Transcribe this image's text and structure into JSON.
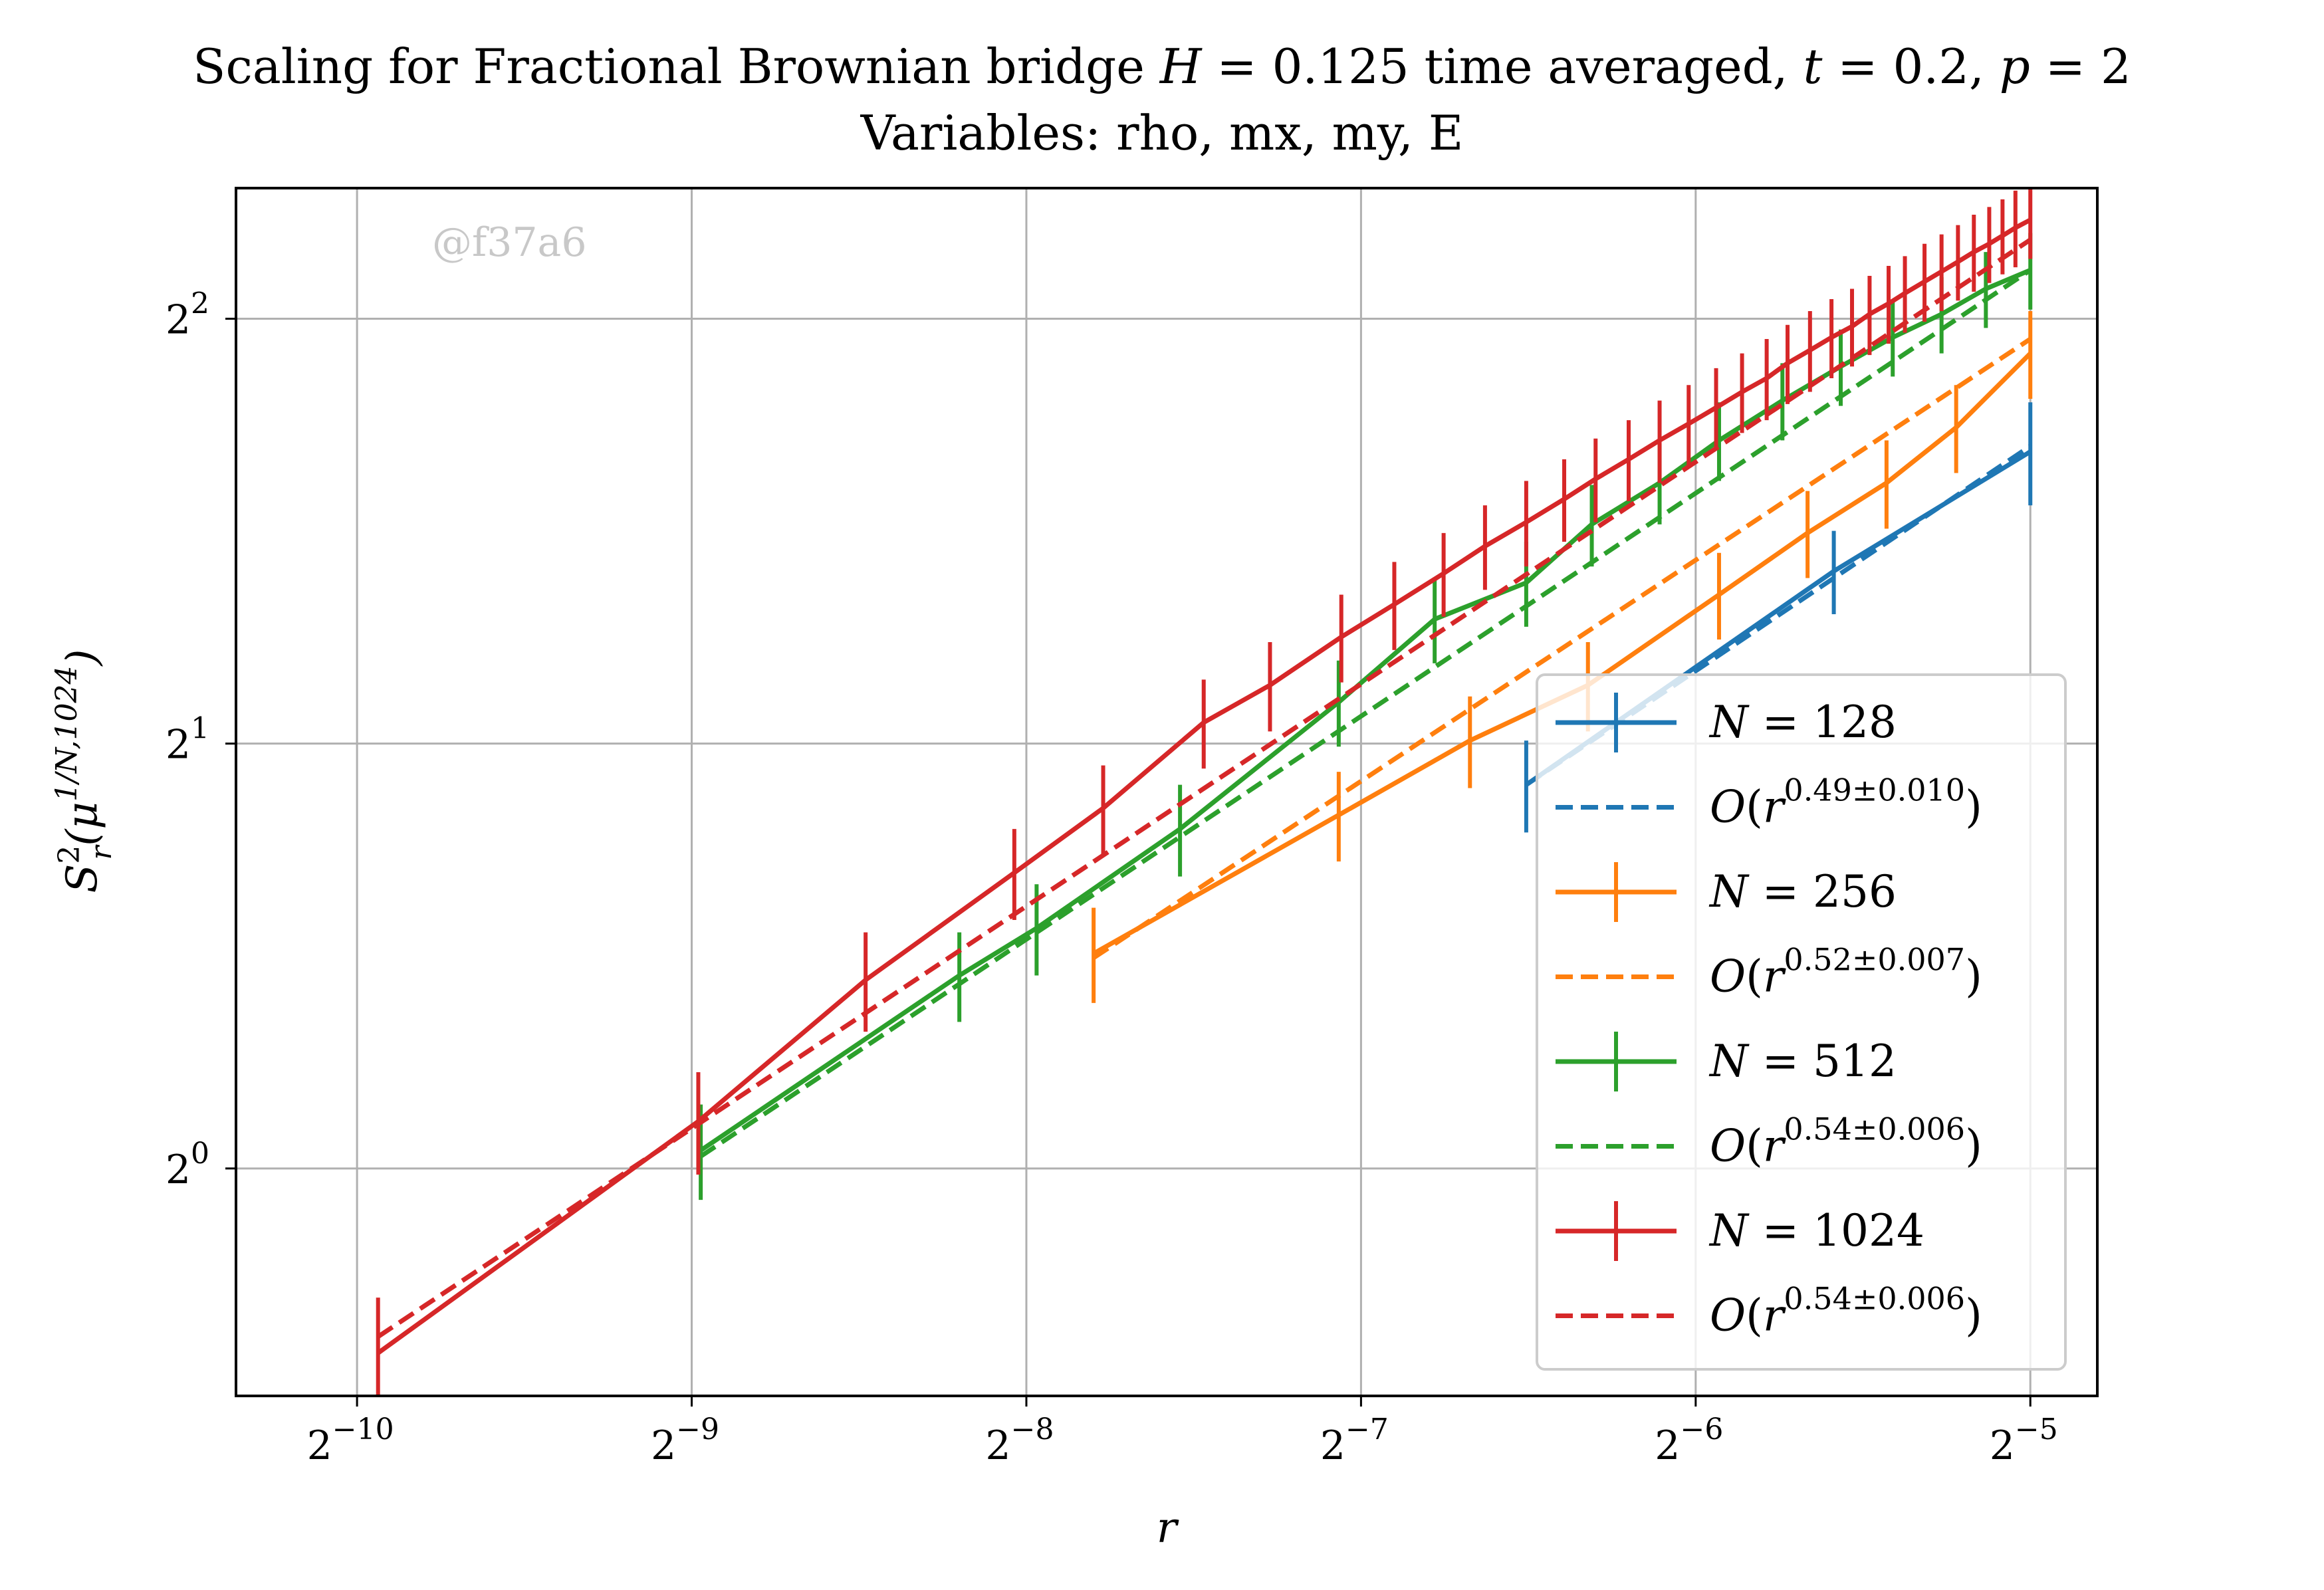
{
  "chart_data": {
    "type": "line",
    "title": "Scaling for Fractional Brownian bridge H = 0.125 time averaged, t = 0.2, p = 2",
    "subtitle": "Variables: rho, mx, my, E",
    "xlabel": "r",
    "ylabel": "S_r^2(μ^{1/N,1024})",
    "xscale": "log2",
    "yscale": "log2",
    "xlim": [
      0.00076,
      0.0359
    ],
    "ylim": [
      0.69,
      4.95
    ],
    "x_ticks": [
      {
        "value": 0.0009765625,
        "base": "2",
        "exp": "−10"
      },
      {
        "value": 0.001953125,
        "base": "2",
        "exp": "−9"
      },
      {
        "value": 0.00390625,
        "base": "2",
        "exp": "−8"
      },
      {
        "value": 0.0078125,
        "base": "2",
        "exp": "−7"
      },
      {
        "value": 0.015625,
        "base": "2",
        "exp": "−6"
      },
      {
        "value": 0.03125,
        "base": "2",
        "exp": "−5"
      }
    ],
    "y_ticks": [
      {
        "value": 1,
        "base": "2",
        "exp": "0"
      },
      {
        "value": 2,
        "base": "2",
        "exp": "1"
      },
      {
        "value": 4,
        "base": "2",
        "exp": "2"
      }
    ],
    "grid": true,
    "legend_position": "lower right",
    "watermark": "@f37a6",
    "series": [
      {
        "name": "N = 128",
        "kind": "data",
        "color": "#1f77b4",
        "x": [
          0.011,
          0.0208,
          0.03125
        ],
        "y": [
          1.87,
          2.65,
          3.22
        ],
        "err": [
          0.14,
          0.18,
          0.27
        ]
      },
      {
        "name": "O(r^{0.49±0.010})",
        "kind": "fit",
        "color": "#1f77b4",
        "exponent": 0.49,
        "x": [
          0.011,
          0.03125
        ],
        "y": [
          1.87,
          3.25
        ]
      },
      {
        "name": "N = 256",
        "kind": "data",
        "color": "#ff7f0e",
        "x": [
          0.00449,
          0.00746,
          0.00979,
          0.0125,
          0.0164,
          0.0197,
          0.0232,
          0.0268,
          0.03125
        ],
        "y": [
          1.42,
          1.78,
          2.01,
          2.2,
          2.55,
          2.82,
          3.06,
          3.35,
          3.78
        ],
        "err": [
          0.11,
          0.13,
          0.15,
          0.16,
          0.18,
          0.2,
          0.22,
          0.24,
          0.27
        ]
      },
      {
        "name": "O(r^{0.52±0.007})",
        "kind": "fit",
        "color": "#ff7f0e",
        "exponent": 0.52,
        "x": [
          0.00449,
          0.03125
        ],
        "y": [
          1.41,
          3.87
        ]
      },
      {
        "name": "N = 512",
        "kind": "data",
        "color": "#2ca02c",
        "x": [
          0.00199,
          0.0034,
          0.00399,
          0.00537,
          0.00746,
          0.0091,
          0.011,
          0.0126,
          0.0145,
          0.0164,
          0.0187,
          0.0211,
          0.0235,
          0.026,
          0.0285,
          0.03125
        ],
        "y": [
          1.03,
          1.37,
          1.48,
          1.74,
          2.14,
          2.45,
          2.6,
          2.86,
          3.06,
          3.28,
          3.5,
          3.7,
          3.88,
          4.03,
          4.2,
          4.33
        ],
        "err": [
          0.08,
          0.1,
          0.11,
          0.13,
          0.15,
          0.17,
          0.18,
          0.19,
          0.2,
          0.21,
          0.22,
          0.23,
          0.24,
          0.25,
          0.26,
          0.27
        ]
      },
      {
        "name": "O(r^{0.54±0.006})",
        "kind": "fit",
        "color": "#2ca02c",
        "exponent": 0.54,
        "x": [
          0.00199,
          0.03125
        ],
        "y": [
          1.02,
          4.33
        ]
      },
      {
        "name": "N = 1024",
        "kind": "data",
        "color": "#d62728",
        "x": [
          0.00102,
          0.00198,
          0.0028,
          0.00381,
          0.00458,
          0.00564,
          0.00647,
          0.0075,
          0.00837,
          0.00927,
          0.0101,
          0.011,
          0.0119,
          0.0127,
          0.0136,
          0.0145,
          0.0154,
          0.0163,
          0.0172,
          0.0181,
          0.0189,
          0.0198,
          0.0207,
          0.0216,
          0.0224,
          0.0233,
          0.0241,
          0.0251,
          0.026,
          0.0269,
          0.0278,
          0.0287,
          0.0295,
          0.0303,
          0.03125
        ],
        "y": [
          0.74,
          1.08,
          1.36,
          1.62,
          1.8,
          2.07,
          2.2,
          2.38,
          2.51,
          2.64,
          2.76,
          2.87,
          2.98,
          3.08,
          3.18,
          3.28,
          3.37,
          3.46,
          3.55,
          3.63,
          3.72,
          3.8,
          3.88,
          3.95,
          4.03,
          4.1,
          4.17,
          4.25,
          4.32,
          4.39,
          4.46,
          4.52,
          4.58,
          4.64,
          4.7
        ],
        "err": [
          0.07,
          0.09,
          0.11,
          0.12,
          0.13,
          0.15,
          0.16,
          0.17,
          0.18,
          0.18,
          0.19,
          0.2,
          0.2,
          0.21,
          0.21,
          0.22,
          0.22,
          0.23,
          0.23,
          0.24,
          0.24,
          0.25,
          0.25,
          0.25,
          0.26,
          0.26,
          0.26,
          0.27,
          0.27,
          0.27,
          0.28,
          0.28,
          0.28,
          0.29,
          0.29
        ]
      },
      {
        "name": "O(r^{0.54±0.006})",
        "kind": "fit",
        "color": "#d62728",
        "exponent": 0.54,
        "x": [
          0.00102,
          0.03125
        ],
        "y": [
          0.76,
          4.55
        ]
      }
    ]
  }
}
